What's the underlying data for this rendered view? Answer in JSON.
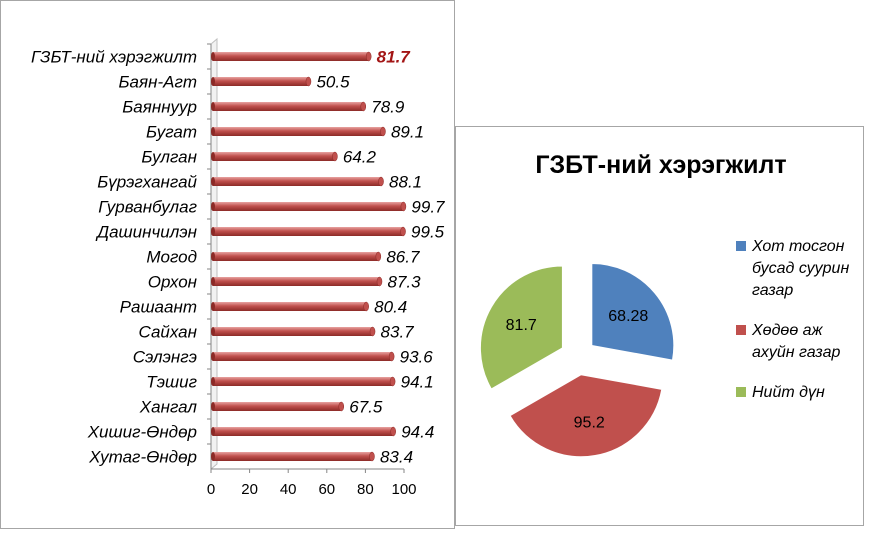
{
  "chart_data": [
    {
      "type": "bar",
      "orientation": "horizontal",
      "categories": [
        "ГЗБТ-ний хэрэгжилт",
        "Баян-Агт",
        "Баяннуур",
        "Бугат",
        "Булган",
        "Бүрэгхангай",
        "Гурванбулаг",
        "Дашинчилэн",
        "Могод",
        "Орхон",
        "Рашаант",
        "Сайхан",
        "Сэлэнгэ",
        "Тэшиг",
        "Хангал",
        "Хишиг-Өндөр",
        "Хутаг-Өндөр"
      ],
      "values": [
        81.7,
        50.5,
        78.9,
        89.1,
        64.2,
        88.1,
        99.7,
        99.5,
        86.7,
        87.3,
        80.4,
        83.7,
        93.6,
        94.1,
        67.5,
        94.4,
        83.4
      ],
      "value_labels": [
        "81.7",
        "50.5",
        "78.9",
        "89.1",
        "64.2",
        "88.1",
        "99.7",
        "99.5",
        "86.7",
        "87.3",
        "80.4",
        "83.7",
        "93.6",
        "94.1",
        "67.5",
        "94.4",
        "83.4"
      ],
      "highlight_index": 0,
      "xlim": [
        0,
        100
      ],
      "xticks": [
        "0",
        "20",
        "40",
        "60",
        "80",
        "100"
      ],
      "grid": false,
      "colors": {
        "bar": "#c0504d",
        "bar_dark": "#8c2a27",
        "bar_light": "#e8a3a1",
        "highlight_label": "#a31515"
      }
    },
    {
      "type": "pie",
      "title": "ГЗБТ-ний хэрэгжилт",
      "slices": [
        {
          "legend": [
            "Хот тосгон",
            "бусад суурин",
            "газар"
          ],
          "value": 68.28,
          "label": "68.28",
          "color": "#4f81bd"
        },
        {
          "legend": [
            "Хөдөө аж",
            "ахуйн газар"
          ],
          "value": 95.2,
          "label": "95.2",
          "color": "#c0504d"
        },
        {
          "legend": [
            "Нийт дүн"
          ],
          "value": 81.7,
          "label": "81.7",
          "color": "#9bbb59"
        }
      ],
      "exploded": true,
      "legend_position": "right"
    }
  ]
}
